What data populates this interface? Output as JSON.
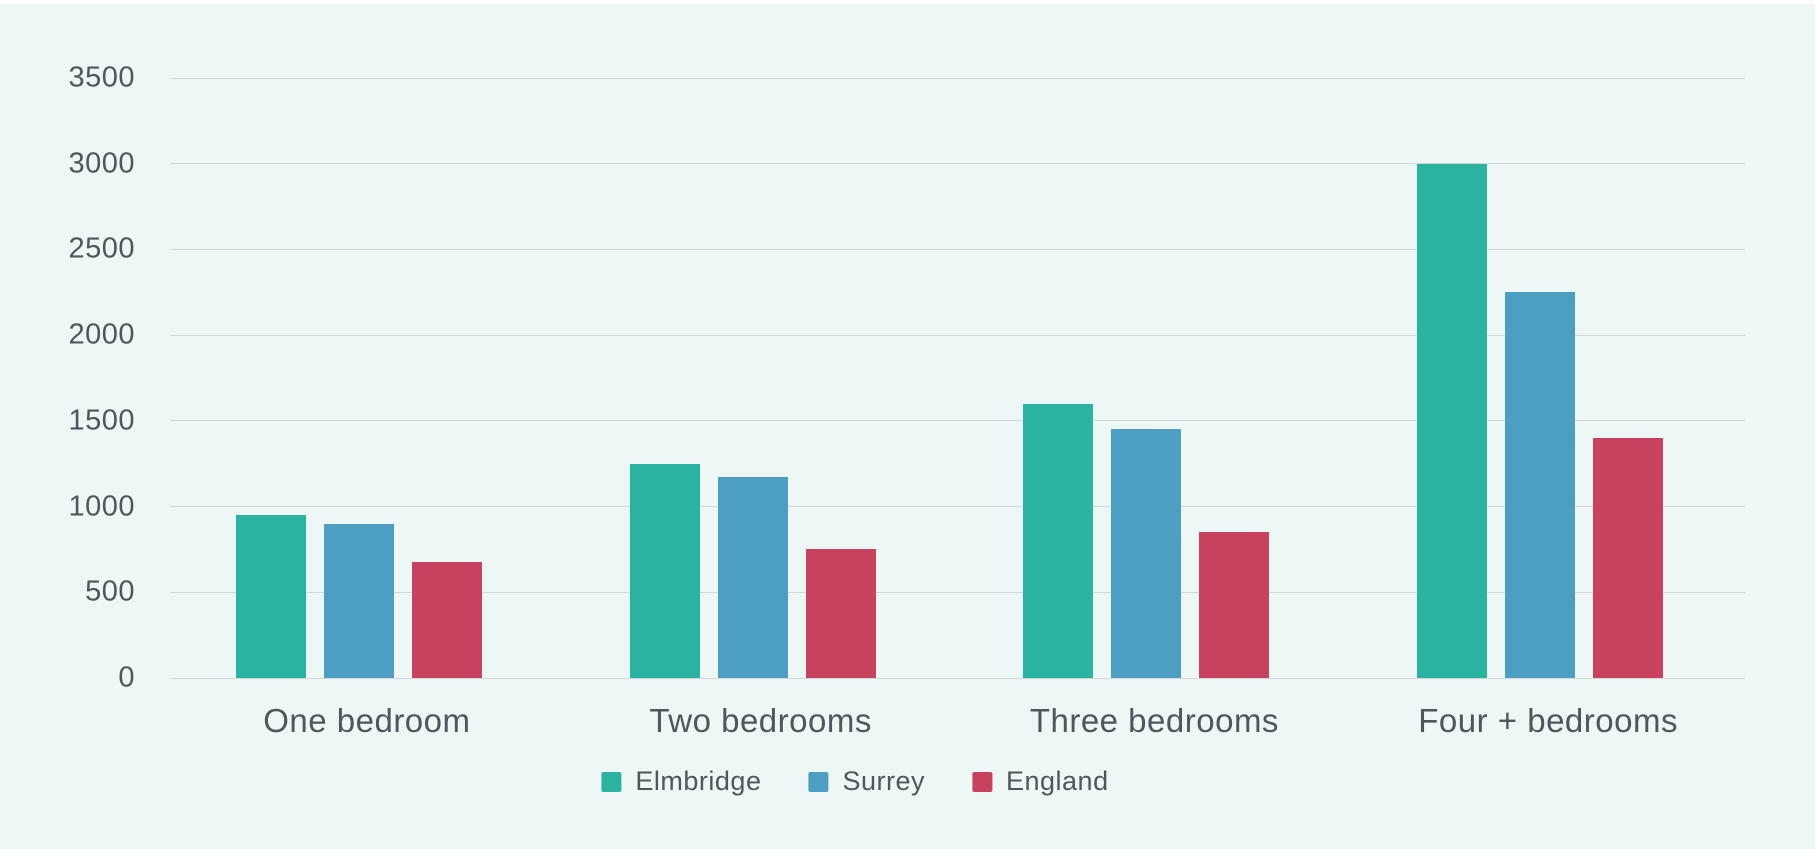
{
  "chart_data": {
    "type": "bar",
    "categories": [
      "One bedroom",
      "Two bedrooms",
      "Three bedrooms",
      "Four + bedrooms"
    ],
    "series": [
      {
        "name": "Elmbridge",
        "color": "#2bb3a1",
        "values": [
          950,
          1250,
          1600,
          3000
        ]
      },
      {
        "name": "Surrey",
        "color": "#4c9fc2",
        "values": [
          900,
          1170,
          1450,
          2250
        ]
      },
      {
        "name": "England",
        "color": "#c8415f",
        "values": [
          675,
          750,
          850,
          1400
        ]
      }
    ],
    "title": "",
    "xlabel": "",
    "ylabel": "",
    "ylim": [
      0,
      3500
    ],
    "y_ticks": [
      0,
      500,
      1000,
      1500,
      2000,
      2500,
      3000,
      3500
    ],
    "grid": true,
    "legend_position": "bottom-center"
  },
  "style": {
    "page_background": "#ffffff",
    "panel_background": "#edf7f5",
    "gridline_color": "#d2d8d7",
    "text_color": "#50565c"
  }
}
